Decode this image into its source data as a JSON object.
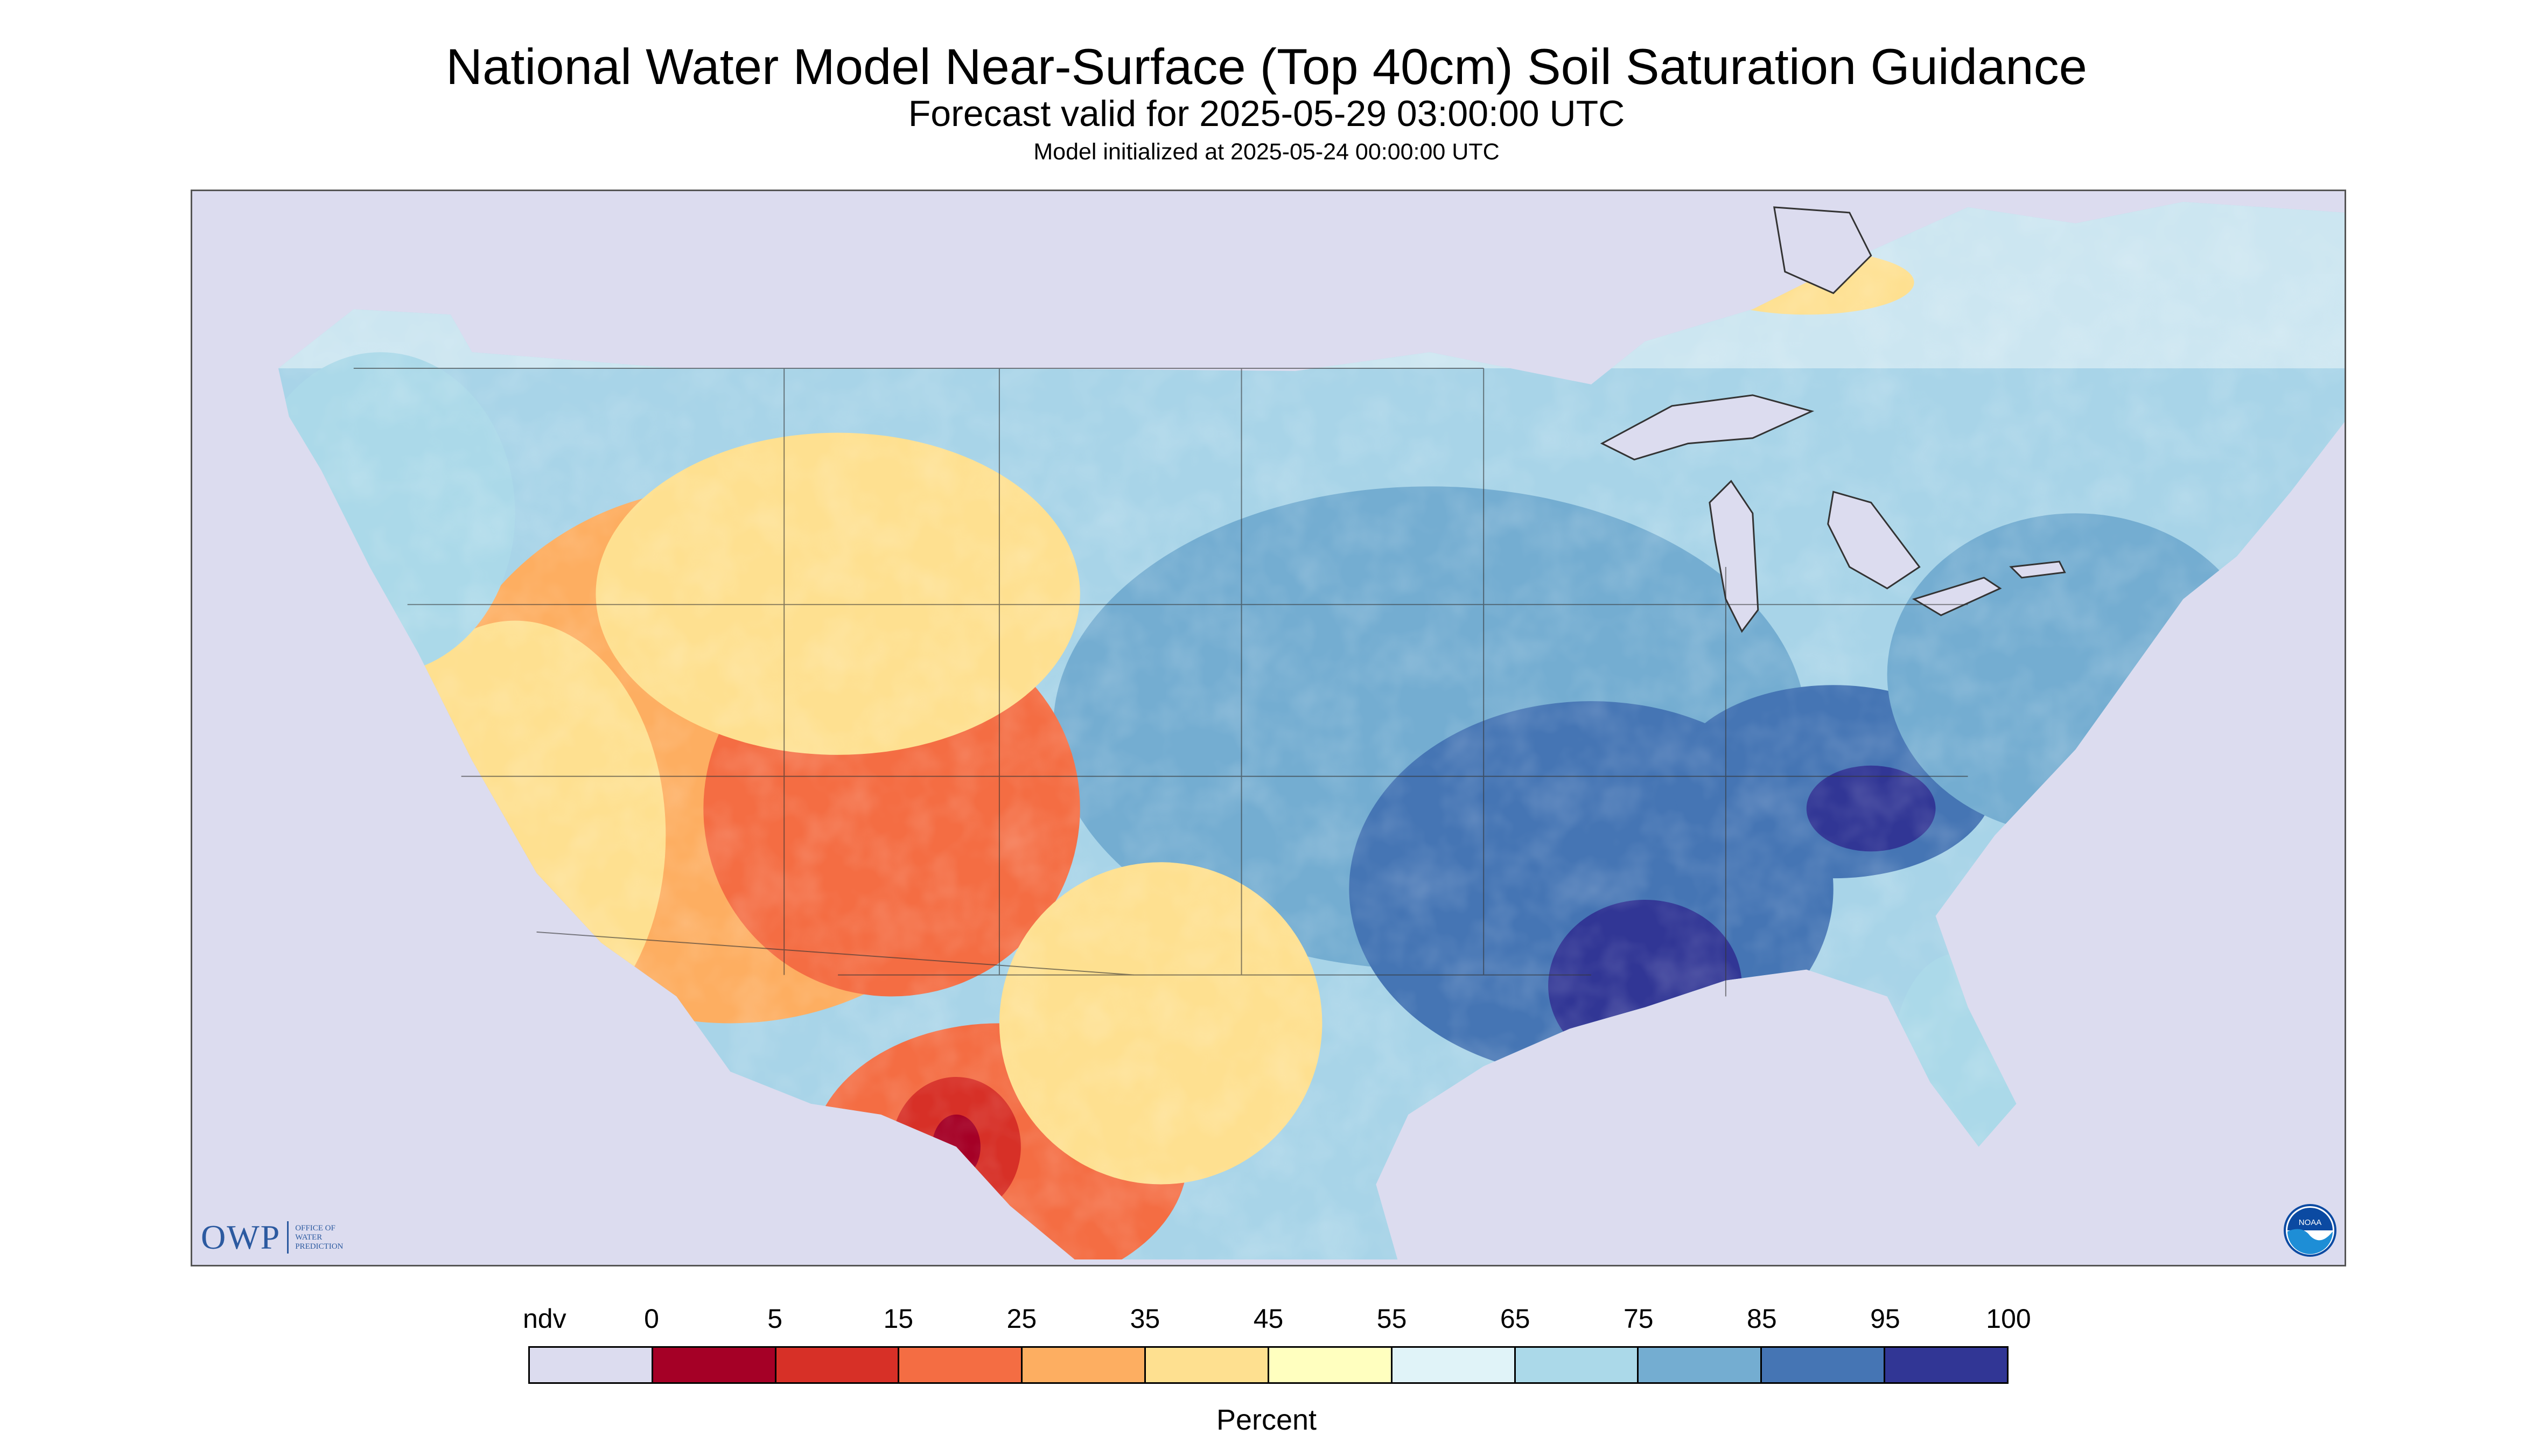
{
  "header": {
    "title": "National Water Model Near-Surface (Top 40cm) Soil Saturation Guidance",
    "subtitle": "Forecast valid for 2025-05-29 03:00:00 UTC",
    "init": "Model initialized at 2025-05-24 00:00:00 UTC"
  },
  "map": {
    "region": "Contiguous United States",
    "variable": "Near-surface soil saturation",
    "nodata_color": "#dcdcef"
  },
  "logos": {
    "owp_text": "OWP",
    "owp_sub": "Office of Water Prediction",
    "noaa_text": "NOAA"
  },
  "legend": {
    "unit": "Percent",
    "labels": [
      "ndv",
      "0",
      "5",
      "15",
      "25",
      "35",
      "45",
      "55",
      "65",
      "75",
      "85",
      "95",
      "100"
    ],
    "colors": [
      "#dcdcef",
      "#a50026",
      "#d73027",
      "#f46d43",
      "#fdae61",
      "#fee090",
      "#ffffbf",
      "#e0f3f8",
      "#abd9e9",
      "#74add1",
      "#4575b4",
      "#313695"
    ]
  }
}
